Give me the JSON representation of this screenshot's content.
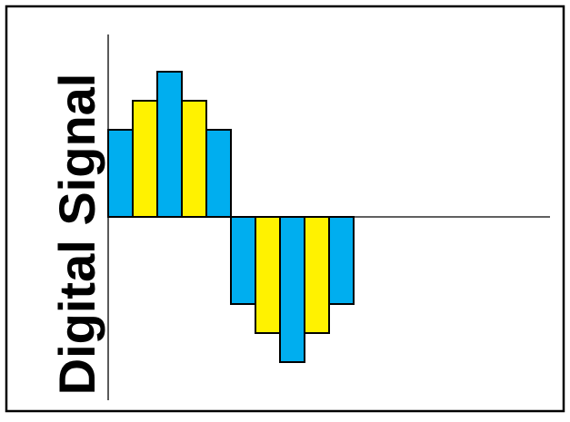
{
  "title": "Digital Signal",
  "colors": {
    "blue": "#00aeef",
    "yellow": "#fff200",
    "outline": "#000000",
    "background": "#ffffff"
  },
  "chart_data": {
    "type": "bar",
    "values": [
      3,
      4,
      5,
      4,
      3,
      -3,
      -4,
      -5,
      -4,
      -3
    ],
    "bar_colors": [
      "blue",
      "yellow",
      "blue",
      "yellow",
      "blue",
      "blue",
      "yellow",
      "blue",
      "yellow",
      "blue"
    ],
    "ylim": [
      -5.2,
      5
    ],
    "grid": false,
    "legend": "none"
  }
}
